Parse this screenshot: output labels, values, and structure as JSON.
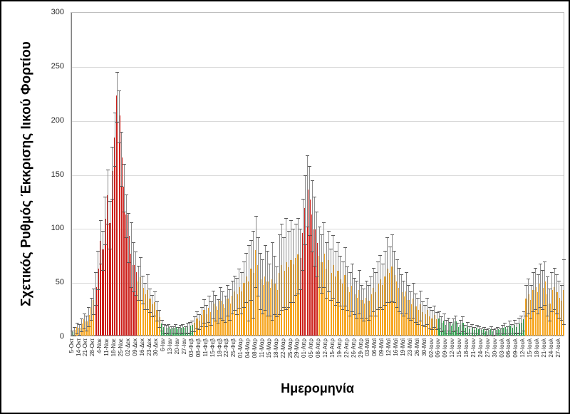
{
  "chart_data": {
    "type": "bar",
    "title": "",
    "xlabel": "Ημερομηνία",
    "ylabel": "Σχετικός Ρυθμός Έκκρισης Ιικού Φορτίου",
    "ylim": [
      0,
      300
    ],
    "yticks": [
      0,
      50,
      100,
      150,
      200,
      250,
      300
    ],
    "y_tick_labels": [
      "0",
      "50",
      "100",
      "150",
      "200",
      "250",
      "300"
    ],
    "grid": "horizontal",
    "legend": "none",
    "bars_per_label": 3,
    "x_tick_labels": [
      "5-Οκτ",
      "14-Οκτ",
      "21-Οκτ",
      "28-Οκτ",
      "4-Νοε",
      "11-Νοε",
      "18-Νοε",
      "25-Νοε",
      "02-Δεκ",
      "09-Δεκ",
      "16-Δεκ",
      "23-Δεκ",
      "30-Δεκ",
      "6-Ιαν",
      "13-Ιαν",
      "20-Ιαν",
      "27-Ιαν",
      "03-Φεβ",
      "08-Φεβ",
      "11-Φεβ",
      "15-Φεβ",
      "18-Φεβ",
      "22-Φεβ",
      "25-Φεβ",
      "01-Μαρ",
      "04-Μαρ",
      "08-Μαρ",
      "11-Μαρ",
      "15-Μαρ",
      "18-Μαρ",
      "22-Μαρ",
      "25-Μαρ",
      "29-Μαρ",
      "01-Απρ",
      "05-Απρ",
      "08-Απρ",
      "12-Απρ",
      "15-Απρ",
      "19-Απρ",
      "22-Απρ",
      "26-Απρ",
      "29-Απρ",
      "03-Μαϊ",
      "06-Μαϊ",
      "09-Μαϊ",
      "12-Μαϊ",
      "16-Μαϊ",
      "19-Μαϊ",
      "23-Μαϊ",
      "26-Μαϊ",
      "30-Μαϊ",
      "02-Ιουν",
      "06-Ιουν",
      "09-Ιουν",
      "12-Ιουν",
      "15-Ιουν",
      "18-Ιουν",
      "21-Ιουν",
      "24-Ιουν",
      "27-Ιουν",
      "30-Ιουν",
      "03-Ιουλ",
      "06-Ιουλ",
      "09-Ιουλ",
      "12-Ιουλ",
      "15-Ιουλ",
      "18-Ιουλ",
      "21-Ιουλ",
      "24-Ιουλ",
      "27-Ιουλ"
    ],
    "colors": {
      "red": "#cc1f1a",
      "orange": "#f6a51f",
      "green": "#2ea44e",
      "whisker": "#8c8c8c",
      "whisker_cap": "#595959",
      "gridline": "#d9d9d9",
      "axis": "#808080"
    },
    "color_runs": [
      [
        "green",
        1
      ],
      [
        "orange",
        9
      ],
      [
        "red",
        18
      ],
      [
        "orange",
        10
      ],
      [
        "green",
        14
      ],
      [
        "orange",
        45
      ],
      [
        "red",
        8
      ],
      [
        "orange",
        51
      ],
      [
        "green",
        37
      ],
      [
        "orange",
        17
      ]
    ],
    "values": [
      3,
      5,
      8,
      7,
      11,
      15,
      13,
      19,
      26,
      33,
      45,
      62,
      88,
      80,
      108,
      130,
      104,
      152,
      183,
      222,
      204,
      165,
      138,
      112,
      92,
      76,
      65,
      59,
      50,
      54,
      44,
      38,
      42,
      34,
      29,
      31,
      24,
      17,
      11,
      8,
      7,
      8,
      6,
      7,
      8,
      6,
      7,
      8,
      7,
      8,
      9,
      10,
      12,
      16,
      14,
      19,
      24,
      20,
      26,
      22,
      30,
      27,
      24,
      32,
      29,
      26,
      34,
      30,
      37,
      41,
      38,
      45,
      41,
      49,
      55,
      50,
      62,
      58,
      79,
      65,
      52,
      47,
      55,
      50,
      44,
      52,
      48,
      42,
      58,
      65,
      60,
      68,
      63,
      70,
      66,
      72,
      75,
      72,
      95,
      118,
      135,
      126,
      112,
      98,
      86,
      74,
      68,
      76,
      62,
      70,
      58,
      65,
      55,
      60,
      52,
      48,
      56,
      45,
      40,
      46,
      38,
      35,
      42,
      33,
      30,
      35,
      32,
      38,
      44,
      40,
      48,
      52,
      47,
      55,
      62,
      58,
      64,
      56,
      50,
      44,
      40,
      36,
      41,
      33,
      29,
      34,
      27,
      24,
      29,
      22,
      20,
      24,
      18,
      16,
      19,
      15,
      16,
      12,
      14,
      10,
      12,
      9,
      11,
      13,
      8,
      10,
      12,
      7,
      9,
      6,
      8,
      5,
      7,
      6,
      5,
      6,
      4,
      5,
      6,
      4,
      5,
      6,
      5,
      7,
      8,
      6,
      9,
      7,
      10,
      8,
      11,
      12,
      15,
      34,
      38,
      33,
      42,
      45,
      40,
      48,
      44,
      50,
      38,
      30,
      42,
      45,
      40,
      35,
      32,
      42
    ],
    "error_tops": [
      6,
      9,
      13,
      12,
      17,
      22,
      20,
      28,
      36,
      45,
      60,
      80,
      108,
      98,
      130,
      155,
      126,
      176,
      208,
      245,
      228,
      190,
      160,
      132,
      115,
      106,
      88,
      79,
      66,
      74,
      57,
      50,
      58,
      45,
      39,
      42,
      33,
      25,
      16,
      12,
      11,
      12,
      10,
      10,
      12,
      9,
      11,
      12,
      10,
      13,
      14,
      15,
      19,
      24,
      21,
      28,
      35,
      30,
      38,
      33,
      43,
      39,
      35,
      46,
      42,
      38,
      48,
      44,
      52,
      57,
      55,
      63,
      60,
      70,
      78,
      85,
      90,
      98,
      112,
      92,
      78,
      72,
      85,
      80,
      68,
      88,
      75,
      65,
      95,
      105,
      92,
      110,
      98,
      108,
      100,
      105,
      110,
      100,
      128,
      150,
      168,
      158,
      145,
      130,
      116,
      102,
      95,
      106,
      88,
      98,
      82,
      94,
      80,
      88,
      75,
      70,
      83,
      65,
      60,
      68,
      55,
      52,
      62,
      48,
      45,
      52,
      48,
      56,
      64,
      60,
      70,
      76,
      68,
      80,
      92,
      84,
      95,
      80,
      72,
      64,
      58,
      52,
      60,
      48,
      42,
      50,
      40,
      36,
      43,
      33,
      30,
      36,
      28,
      25,
      29,
      23,
      24,
      19,
      22,
      16,
      18,
      14,
      17,
      20,
      13,
      16,
      19,
      11,
      14,
      10,
      12,
      9,
      11,
      10,
      8,
      9,
      7,
      8,
      10,
      7,
      8,
      9,
      8,
      11,
      13,
      10,
      15,
      12,
      16,
      13,
      18,
      20,
      24,
      48,
      54,
      48,
      60,
      64,
      58,
      68,
      62,
      70,
      56,
      45,
      60,
      64,
      58,
      52,
      48,
      72
    ]
  }
}
